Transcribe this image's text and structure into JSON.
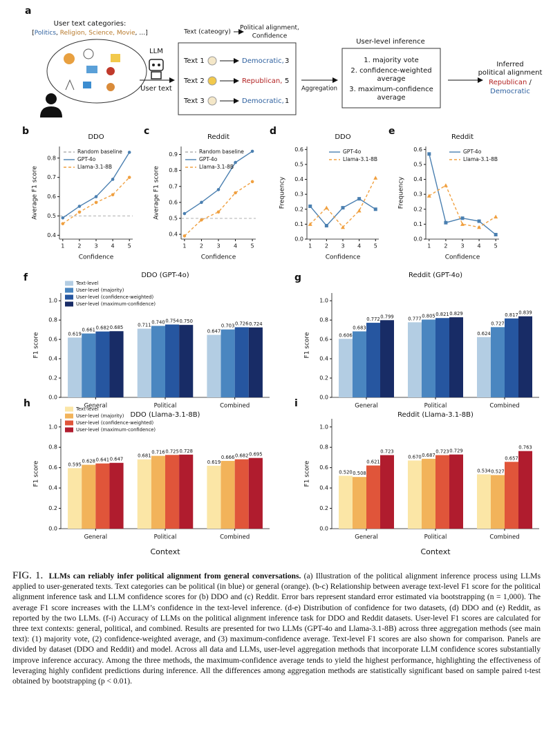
{
  "diagram": {
    "panel": "a",
    "categories_title": "User text categories:",
    "categories_parts": [
      "[",
      "Politics",
      ", ",
      "Religion, Science, Movie",
      ", …]"
    ],
    "llm": "LLM",
    "user_text": "User text",
    "header_left": "Text (cateogry)",
    "header_right": [
      "Political alignment,",
      "Confidence"
    ],
    "texts": [
      {
        "text": "Text 1",
        "alignment": "Democratic,",
        "confidence": 3
      },
      {
        "text": "Text 2",
        "alignment": "Republican,",
        "confidence": 5
      },
      {
        "text": "Text 3",
        "alignment": "Democratic,",
        "confidence": 1
      }
    ],
    "aggregation": "Aggregation",
    "inference_title": "User-level inference",
    "methods": [
      [
        "1. majority vote"
      ],
      [
        "2. confidence-weighted",
        "average"
      ],
      [
        "3. maximum-confidence",
        "average"
      ]
    ],
    "output_title": [
      "Inferred",
      "political alignment"
    ],
    "output_parts": [
      "Republican",
      " /",
      "Democratic"
    ]
  },
  "chart_data": [
    {
      "type": "line",
      "panel": "b",
      "title": "DDO",
      "x_label": "Confidence",
      "y_label": "Average F1 score",
      "x": [
        1,
        2,
        3,
        4,
        5
      ],
      "xlim": [
        0.8,
        5.2
      ],
      "xticks": [
        1,
        2,
        3,
        4,
        5
      ],
      "ylim": [
        0.38,
        0.86
      ],
      "yticks": [
        0.4,
        0.5,
        0.6,
        0.7,
        0.8
      ],
      "legend": "upper left",
      "baseline": {
        "name": "Random baseline",
        "value": 0.5,
        "color": "#b0b0b0"
      },
      "series": [
        {
          "name": "GPT-4o",
          "color": "#4a7fb0",
          "marker": "o",
          "linestyle": "solid",
          "values": [
            0.49,
            0.55,
            0.6,
            0.69,
            0.83
          ]
        },
        {
          "name": "Llama-3.1-8B",
          "color": "#f0a040",
          "marker": "o",
          "linestyle": "dashed",
          "values": [
            0.46,
            0.52,
            0.57,
            0.61,
            0.7
          ]
        }
      ]
    },
    {
      "type": "line",
      "panel": "c",
      "title": "Reddit",
      "x_label": "Confidence",
      "y_label": "Average F1 score",
      "x": [
        1,
        2,
        3,
        4,
        5
      ],
      "xlim": [
        0.8,
        5.2
      ],
      "xticks": [
        1,
        2,
        3,
        4,
        5
      ],
      "ylim": [
        0.37,
        0.95
      ],
      "yticks": [
        0.4,
        0.5,
        0.6,
        0.7,
        0.8,
        0.9
      ],
      "legend": "upper left",
      "baseline": {
        "name": "Random baseline",
        "value": 0.5,
        "color": "#b0b0b0"
      },
      "series": [
        {
          "name": "GPT-4o",
          "color": "#4a7fb0",
          "marker": "o",
          "linestyle": "solid",
          "values": [
            0.53,
            0.6,
            0.68,
            0.85,
            0.92
          ]
        },
        {
          "name": "Llama-3.1-8B",
          "color": "#f0a040",
          "marker": "o",
          "linestyle": "dashed",
          "values": [
            0.39,
            0.49,
            0.54,
            0.66,
            0.73
          ]
        }
      ]
    },
    {
      "type": "line",
      "panel": "d",
      "title": "DDO",
      "x_label": "Confidence",
      "y_label": "Frequency",
      "x": [
        1,
        2,
        3,
        4,
        5
      ],
      "xlim": [
        0.8,
        5.2
      ],
      "xticks": [
        1,
        2,
        3,
        4,
        5
      ],
      "ylim": [
        0,
        0.62
      ],
      "yticks": [
        {
          "value": 0,
          "label": "0.0"
        },
        0.1,
        0.2,
        0.3,
        0.4,
        0.5,
        0.6
      ],
      "legend": "upper right",
      "series": [
        {
          "name": "GPT-4o",
          "color": "#4a7fb0",
          "marker": "s",
          "linestyle": "solid",
          "values": [
            0.22,
            0.09,
            0.21,
            0.27,
            0.2
          ]
        },
        {
          "name": "Llama-3.1-8B",
          "color": "#f0a040",
          "marker": "^",
          "linestyle": "dashed",
          "values": [
            0.1,
            0.21,
            0.08,
            0.19,
            0.41
          ]
        }
      ]
    },
    {
      "type": "line",
      "panel": "e",
      "title": "Reddit",
      "x_label": "Confidence",
      "y_label": "Frequency",
      "x": [
        1,
        2,
        3,
        4,
        5
      ],
      "xlim": [
        0.8,
        5.2
      ],
      "xticks": [
        1,
        2,
        3,
        4,
        5
      ],
      "ylim": [
        0,
        0.62
      ],
      "yticks": [
        {
          "value": 0,
          "label": "0.0"
        },
        0.1,
        0.2,
        0.3,
        0.4,
        0.5,
        0.6
      ],
      "legend": "upper right",
      "series": [
        {
          "name": "GPT-4o",
          "color": "#4a7fb0",
          "marker": "s",
          "linestyle": "solid",
          "values": [
            0.57,
            0.11,
            0.14,
            0.12,
            0.03
          ]
        },
        {
          "name": "Llama-3.1-8B",
          "color": "#f0a040",
          "marker": "^",
          "linestyle": "dashed",
          "values": [
            0.29,
            0.36,
            0.1,
            0.08,
            0.15
          ]
        }
      ]
    },
    {
      "type": "bar",
      "panel": "f",
      "title": "DDO (GPT-4o)",
      "y_label": "F1 score",
      "categories": [
        "General",
        "Political",
        "Combined"
      ],
      "ylim": [
        0,
        1.08
      ],
      "yticks": [
        {
          "value": 0,
          "label": "0.0"
        },
        0.2,
        0.4,
        0.6,
        0.8,
        {
          "value": 1,
          "label": "1.0"
        }
      ],
      "legend": "upper left",
      "series": [
        {
          "name": "Text-level",
          "color": "#b3cde3",
          "values": [
            0.619,
            0.711,
            0.647
          ],
          "value_labels": [
            "0.619",
            "0.711",
            "0.647"
          ]
        },
        {
          "name": "User-level (majority)",
          "color": "#4a86c0",
          "values": [
            0.661,
            0.74,
            0.703
          ],
          "value_labels": [
            "0.661",
            "0.740",
            "0.703"
          ]
        },
        {
          "name": "User-level (confidence-weighted)",
          "color": "#2656a0",
          "values": [
            0.682,
            0.754,
            0.726
          ],
          "value_labels": [
            "0.682",
            "0.754",
            "0.726"
          ]
        },
        {
          "name": "User-level (maximum-confidence)",
          "color": "#182c66",
          "values": [
            0.685,
            0.75,
            0.724
          ],
          "value_labels": [
            "0.685",
            "0.750",
            "0.724"
          ]
        }
      ]
    },
    {
      "type": "bar",
      "panel": "g",
      "title": "Reddit (GPT-4o)",
      "y_label": "F1 score",
      "categories": [
        "General",
        "Political",
        "Combined"
      ],
      "ylim": [
        0,
        1.08
      ],
      "yticks": [
        {
          "value": 0,
          "label": "0.0"
        },
        0.2,
        0.4,
        0.6,
        0.8,
        {
          "value": 1,
          "label": "1.0"
        }
      ],
      "series": [
        {
          "color": "#b3cde3",
          "values": [
            0.606,
            0.777,
            0.624
          ],
          "value_labels": [
            "0.606",
            "0.777",
            "0.624"
          ]
        },
        {
          "color": "#4a86c0",
          "values": [
            0.683,
            0.805,
            0.727
          ],
          "value_labels": [
            "0.683",
            "0.805",
            "0.727"
          ]
        },
        {
          "color": "#2656a0",
          "values": [
            0.772,
            0.821,
            0.817
          ],
          "value_labels": [
            "0.772",
            "0.821",
            "0.817"
          ]
        },
        {
          "color": "#182c66",
          "values": [
            0.799,
            0.829,
            0.839
          ],
          "value_labels": [
            "0.799",
            "0.829",
            "0.839"
          ]
        }
      ]
    },
    {
      "type": "bar",
      "panel": "h",
      "title": "DDO (Llama-3.1-8B)",
      "y_label": "F1 score",
      "x_label": "Context",
      "categories": [
        "General",
        "Political",
        "Combined"
      ],
      "ylim": [
        0,
        1.08
      ],
      "yticks": [
        {
          "value": 0,
          "label": "0.0"
        },
        0.2,
        0.4,
        0.6,
        0.8,
        {
          "value": 1,
          "label": "1.0"
        }
      ],
      "legend": "upper left",
      "series": [
        {
          "name": "Text-level",
          "color": "#fbe6a6",
          "values": [
            0.595,
            0.681,
            0.619
          ],
          "value_labels": [
            "0.595",
            "0.681",
            "0.619"
          ]
        },
        {
          "name": "User-level (majority)",
          "color": "#f2b35a",
          "values": [
            0.628,
            0.716,
            0.666
          ],
          "value_labels": [
            "0.628",
            "0.716",
            "0.666"
          ]
        },
        {
          "name": "User-level (confidence-weighted)",
          "color": "#e0553a",
          "values": [
            0.641,
            0.725,
            0.682
          ],
          "value_labels": [
            "0.641",
            "0.725",
            "0.682"
          ]
        },
        {
          "name": "User-level (maximum-confidence)",
          "color": "#b01c2e",
          "values": [
            0.647,
            0.728,
            0.695
          ],
          "value_labels": [
            "0.647",
            "0.728",
            "0.695"
          ]
        }
      ]
    },
    {
      "type": "bar",
      "panel": "i",
      "title": "Reddit (Llama-3.1-8B)",
      "y_label": "F1 score",
      "x_label": "Context",
      "categories": [
        "General",
        "Political",
        "Combined"
      ],
      "ylim": [
        0,
        1.08
      ],
      "yticks": [
        {
          "value": 0,
          "label": "0.0"
        },
        0.2,
        0.4,
        0.6,
        0.8,
        {
          "value": 1,
          "label": "1.0"
        }
      ],
      "series": [
        {
          "color": "#fbe6a6",
          "values": [
            0.52,
            0.67,
            0.534
          ],
          "value_labels": [
            "0.520",
            "0.670",
            "0.534"
          ]
        },
        {
          "color": "#f2b35a",
          "values": [
            0.508,
            0.687,
            0.527
          ],
          "value_labels": [
            "0.508",
            "0.687",
            "0.527"
          ]
        },
        {
          "color": "#e0553a",
          "values": [
            0.621,
            0.723,
            0.657
          ],
          "value_labels": [
            "0.621",
            "0.723",
            "0.657"
          ]
        },
        {
          "color": "#b01c2e",
          "values": [
            0.723,
            0.729,
            0.763
          ],
          "value_labels": [
            "0.723",
            "0.729",
            "0.763"
          ]
        }
      ]
    }
  ],
  "caption": {
    "label": "FIG. 1.",
    "title": "LLMs can reliably infer political alignment from general conversations.",
    "body": "(a) Illustration of the political alignment inference process using LLMs applied to user-generated texts. Text categories can be political (in blue) or general (orange). (b-c) Relationship between average text-level F1 score for the political alignment inference task and LLM confidence scores for (b) DDO and (c) Reddit. Error bars represent standard error estimated via bootstrapping (n = 1,000). The average F1 score increases with the LLM’s confidence in the text-level inference. (d-e) Distribution of confidence for two datasets, (d) DDO and (e) Reddit, as reported by the two LLMs. (f-i) Accuracy of LLMs on the political alignment inference task for DDO and Reddit datasets. User-level F1 scores are calculated for three text contexts: general, political, and combined. Results are presented for two LLMs (GPT-4o and Llama-3.1-8B) across three aggregation methods (see main text): (1) majority vote, (2) confidence-weighted average, and (3) maximum-confidence average. Text-level F1 scores are also shown for comparison. Panels are divided by dataset (DDO and Reddit) and model. Across all data and LLMs, user-level aggregation methods that incorporate LLM confidence scores substantially improve inference accuracy. Among the three methods, the maximum-confidence average tends to yield the highest performance, highlighting the effectiveness of leveraging highly confident predictions during inference. All the differences among aggregation methods are statistically significant based on sample paired t-test obtained by bootstrapping (p < 0.01)."
  }
}
